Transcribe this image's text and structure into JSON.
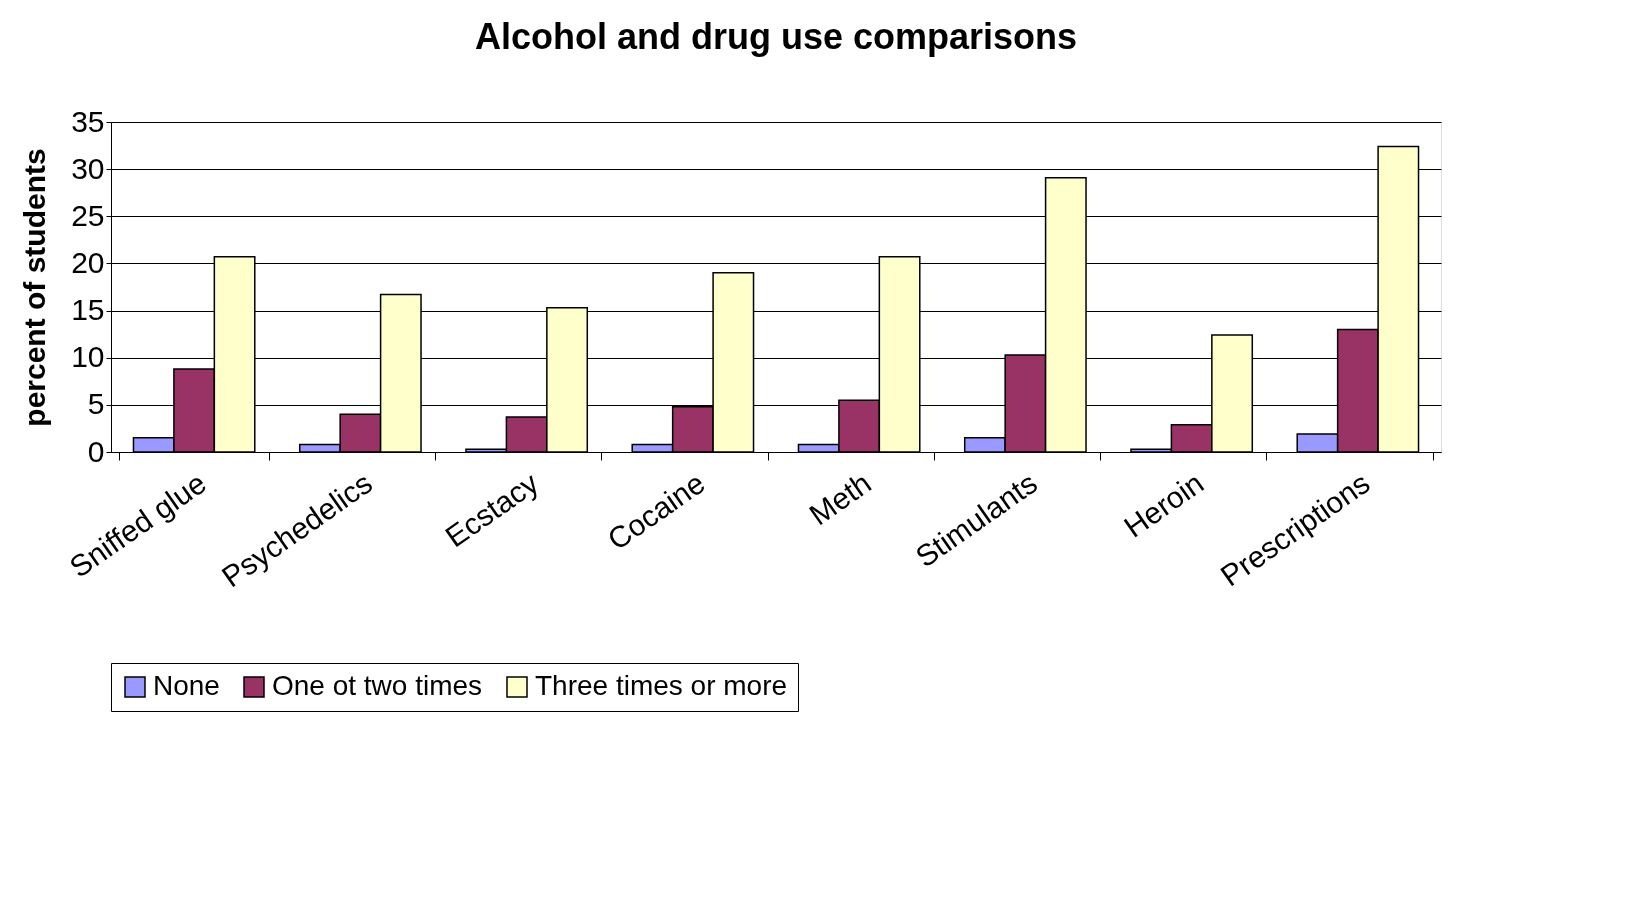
{
  "chart_data": {
    "type": "bar",
    "title": "Alcohol and drug use comparisons",
    "ylabel": "percent of students",
    "categories": [
      "Sniffed glue",
      "Psychedelics",
      "Ecstacy",
      "Cocaine",
      "Meth",
      "Stimulants",
      "Heroin",
      "Prescriptions"
    ],
    "series": [
      {
        "name": "None",
        "color": "#9999ff",
        "values": [
          1.5,
          0.8,
          0.3,
          0.8,
          0.8,
          1.5,
          0.3,
          1.9
        ]
      },
      {
        "name": "One ot two times",
        "color": "#993366",
        "values": [
          8.8,
          4.0,
          3.7,
          4.8,
          5.5,
          10.3,
          2.9,
          13.0
        ]
      },
      {
        "name": "Three times or more",
        "color": "#ffffcc",
        "values": [
          20.7,
          16.7,
          15.3,
          19.0,
          20.7,
          29.1,
          12.4,
          32.4
        ]
      }
    ],
    "ylim": [
      0,
      35
    ],
    "yticks": [
      0,
      5,
      10,
      15,
      20,
      25,
      30,
      35
    ],
    "grid": "y",
    "legend": "bottom"
  }
}
